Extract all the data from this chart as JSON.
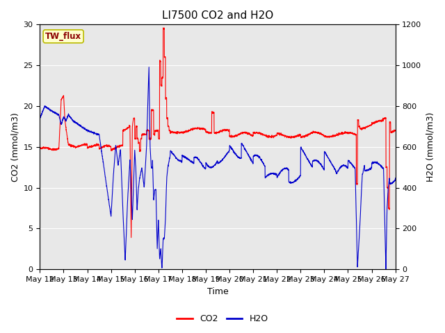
{
  "title": "LI7500 CO2 and H2O",
  "xlabel": "Time",
  "ylabel_left": "CO2 (mmol/m3)",
  "ylabel_right": "H2O (mmol/m3)",
  "ylim_left": [
    0,
    30
  ],
  "ylim_right": [
    0,
    1200
  ],
  "x_tick_labels": [
    "May 12",
    "May 13",
    "May 14",
    "May 15",
    "May 16",
    "May 17",
    "May 18",
    "May 19",
    "May 20",
    "May 21",
    "May 22",
    "May 23",
    "May 24",
    "May 25",
    "May 26",
    "May 27"
  ],
  "annotation_text": "TW_flux",
  "annotation_bg": "#ffffcc",
  "annotation_border": "#bbbb00",
  "annotation_text_color": "#8b0000",
  "co2_color": "#ff0000",
  "h2o_color": "#0000cc",
  "bg_color": "#e8e8e8",
  "legend_co2": "CO2",
  "legend_h2o": "H2O",
  "line_width": 0.8,
  "title_fontsize": 11,
  "axis_fontsize": 9,
  "tick_fontsize": 8,
  "legend_fontsize": 9
}
